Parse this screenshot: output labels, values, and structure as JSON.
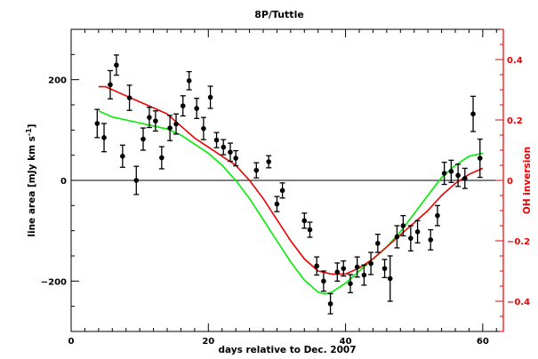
{
  "chart_data": {
    "type": "scatter",
    "title": "8P/Tuttle",
    "xlabel": "days relative to Dec. 2007",
    "ylabel": "line area [mJy km s",
    "ylabel_sup": "-1",
    "ylabel_close": "]",
    "y2label": "OH inversion",
    "xlim": [
      0,
      63
    ],
    "ylim": [
      -300,
      300
    ],
    "y2lim": [
      -0.5,
      0.5
    ],
    "xticks": [
      0,
      20,
      40,
      60
    ],
    "yticks": [
      -200,
      0,
      200
    ],
    "y2ticks": [
      -0.4,
      -0.2,
      0,
      0.2,
      0.4
    ],
    "xtick_labels": [
      "0",
      "20",
      "40",
      "60"
    ],
    "ytick_labels": [
      "−200",
      "0",
      "200"
    ],
    "y2tick_labels": [
      "−0.4",
      "−0.2",
      "0",
      "0.2",
      "0.4"
    ],
    "colors": {
      "points": "#000000",
      "green_line": "#00ee00",
      "red_line": "#ee0000",
      "right_axis": "#ee0000",
      "zero_line": "#000000"
    },
    "series": [
      {
        "kind": "points-with-errorbars",
        "x": [
          3.8,
          4.8,
          5.7,
          6.6,
          7.5,
          8.5,
          9.5,
          10.5,
          11.4,
          12.3,
          13.2,
          14.4,
          15.3,
          16.3,
          17.2,
          18.3,
          19.3,
          20.3,
          21.2,
          22.2,
          23.2,
          24.0,
          27.0,
          28.8,
          30.0,
          30.8,
          34.0,
          34.8,
          35.8,
          36.8,
          37.8,
          38.8,
          39.7,
          40.7,
          41.7,
          42.7,
          43.7,
          44.7,
          45.7,
          46.5,
          47.5,
          48.4,
          49.5,
          50.5,
          52.4,
          53.4,
          54.4,
          55.4,
          56.4,
          57.4,
          58.6,
          59.6
        ],
        "y": [
          113,
          85,
          190,
          229,
          48,
          164,
          0,
          82,
          125,
          118,
          45,
          104,
          112,
          148,
          198,
          143,
          103,
          165,
          80,
          66,
          56,
          44,
          20,
          37,
          -47,
          -20,
          -80,
          -98,
          -170,
          -200,
          -245,
          -182,
          -175,
          -205,
          -172,
          -188,
          -165,
          -125,
          -175,
          -195,
          -112,
          -90,
          -115,
          -102,
          -118,
          -70,
          14,
          18,
          10,
          4,
          132,
          44
        ],
        "err": [
          28,
          28,
          28,
          20,
          22,
          25,
          28,
          22,
          20,
          20,
          22,
          25,
          20,
          20,
          18,
          20,
          22,
          22,
          15,
          15,
          18,
          15,
          15,
          12,
          15,
          15,
          15,
          15,
          18,
          20,
          20,
          18,
          15,
          18,
          20,
          20,
          22,
          18,
          18,
          45,
          22,
          20,
          25,
          22,
          20,
          20,
          22,
          22,
          22,
          20,
          35,
          38
        ]
      },
      {
        "kind": "line",
        "color": "green",
        "axis": "right",
        "x": [
          4,
          6,
          8,
          10,
          12,
          14,
          16,
          18,
          20,
          22,
          24,
          26,
          28,
          30,
          32,
          34,
          36,
          37,
          38,
          40,
          42,
          44,
          46,
          48,
          50,
          52,
          54,
          56,
          58,
          60
        ],
        "y": [
          0.23,
          0.21,
          0.2,
          0.19,
          0.18,
          0.17,
          0.15,
          0.12,
          0.09,
          0.05,
          0.0,
          -0.06,
          -0.13,
          -0.2,
          -0.27,
          -0.33,
          -0.37,
          -0.375,
          -0.37,
          -0.34,
          -0.3,
          -0.26,
          -0.22,
          -0.17,
          -0.11,
          -0.05,
          0.01,
          0.05,
          0.08,
          0.09
        ]
      },
      {
        "kind": "line",
        "color": "red",
        "axis": "right",
        "x": [
          4,
          5,
          6,
          8,
          10,
          12,
          14,
          16,
          18,
          20,
          22,
          24,
          26,
          28,
          30,
          32,
          34,
          36,
          38,
          40,
          42,
          44,
          46,
          48,
          50,
          52,
          54,
          56,
          58,
          60
        ],
        "y": [
          0.31,
          0.31,
          0.3,
          0.28,
          0.26,
          0.24,
          0.22,
          0.18,
          0.14,
          0.11,
          0.08,
          0.05,
          0.0,
          -0.06,
          -0.13,
          -0.2,
          -0.26,
          -0.3,
          -0.31,
          -0.31,
          -0.29,
          -0.26,
          -0.22,
          -0.18,
          -0.14,
          -0.1,
          -0.05,
          -0.01,
          0.02,
          0.04
        ]
      }
    ]
  }
}
